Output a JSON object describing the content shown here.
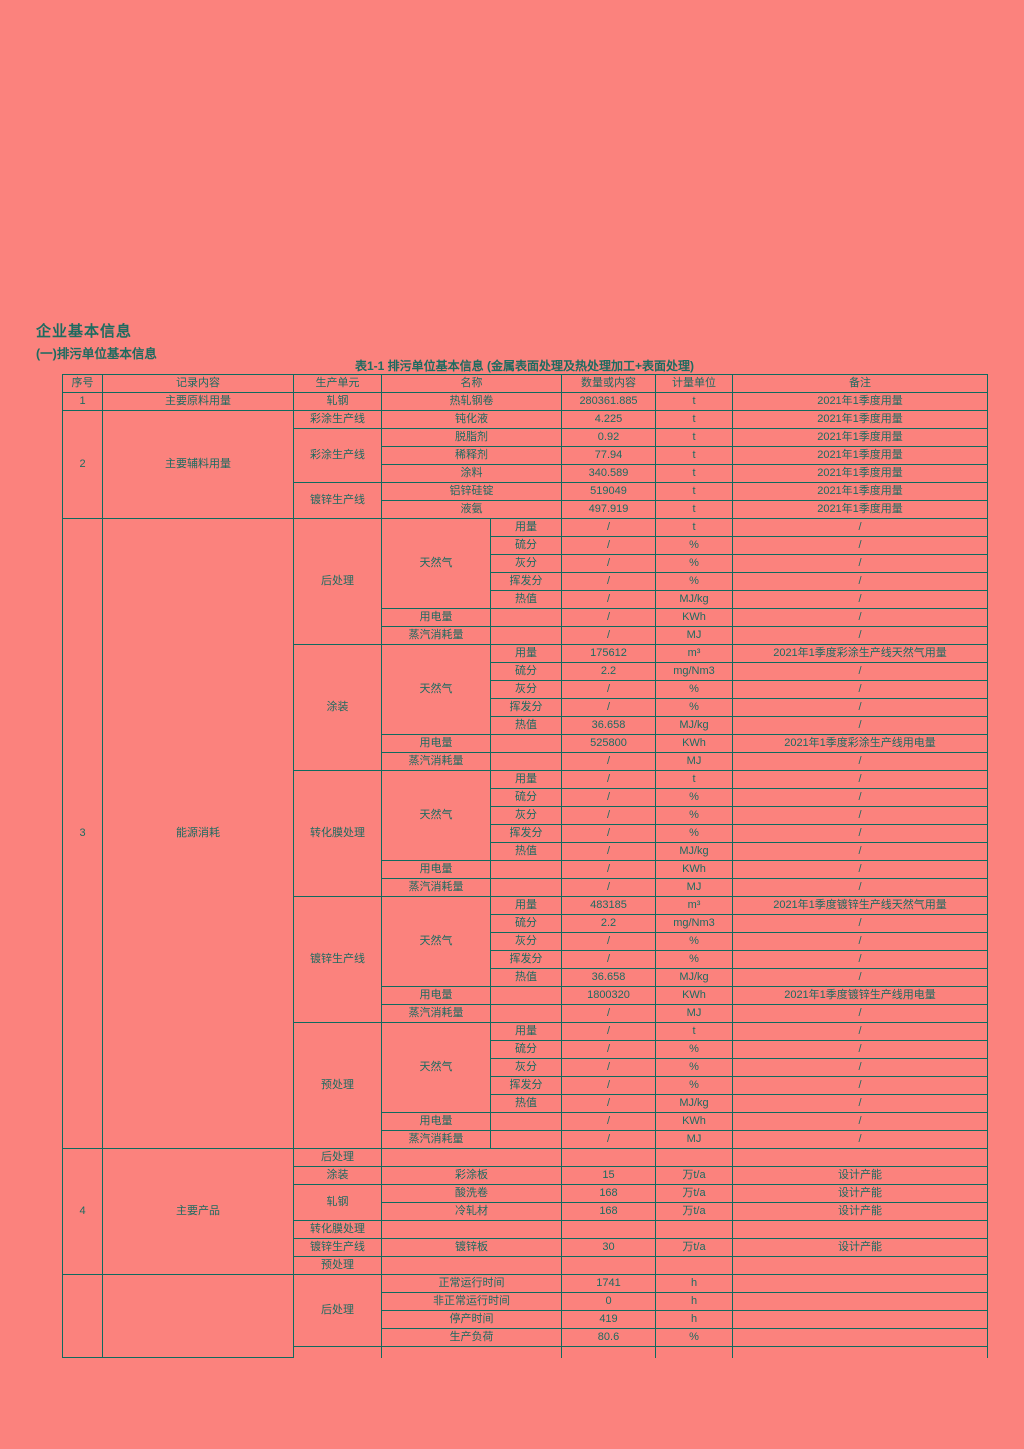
{
  "page": {
    "title": "企业基本信息",
    "subtitle": "(一)排污单位基本信息",
    "table_caption": "表1-1 排污单位基本信息 (金属表面处理及热处理加工+表面处理)"
  },
  "colors": {
    "page_background": "#fb827d",
    "ink": "#1d6b60",
    "table_border": "#0f6a5e"
  },
  "table": {
    "headers": [
      "序号",
      "记录内容",
      "生产单元",
      "名称",
      "数量或内容",
      "计量单位",
      "备注"
    ],
    "rows": [
      {
        "cells": [
          {
            "t": "1"
          },
          {
            "t": "主要原料用量"
          },
          {
            "t": "轧钢"
          },
          {
            "t": "热轧钢卷",
            "cs": 2
          },
          {
            "t": "280361.885"
          },
          {
            "t": "t"
          },
          {
            "t": "2021年1季度用量"
          }
        ]
      },
      {
        "cells": [
          {
            "t": "2",
            "rs": 6
          },
          {
            "t": "主要辅料用量",
            "rs": 6
          },
          {
            "t": "彩涂生产线"
          },
          {
            "t": "钝化液",
            "cs": 2
          },
          {
            "t": "4.225"
          },
          {
            "t": "t"
          },
          {
            "t": "2021年1季度用量"
          }
        ]
      },
      {
        "cells": [
          {
            "t": "彩涂生产线",
            "rs": 3
          },
          {
            "t": "脱脂剂",
            "cs": 2
          },
          {
            "t": "0.92"
          },
          {
            "t": "t"
          },
          {
            "t": "2021年1季度用量"
          }
        ]
      },
      {
        "cells": [
          {
            "t": "稀释剂",
            "cs": 2
          },
          {
            "t": "77.94"
          },
          {
            "t": "t"
          },
          {
            "t": "2021年1季度用量"
          }
        ]
      },
      {
        "cells": [
          {
            "t": "涂料",
            "cs": 2
          },
          {
            "t": "340.589"
          },
          {
            "t": "t"
          },
          {
            "t": "2021年1季度用量"
          }
        ]
      },
      {
        "cells": [
          {
            "t": "镀锌生产线",
            "rs": 2
          },
          {
            "t": "铝锌硅锭",
            "cs": 2
          },
          {
            "t": "519049"
          },
          {
            "t": "t"
          },
          {
            "t": "2021年1季度用量"
          }
        ]
      },
      {
        "cells": [
          {
            "t": "液氨",
            "cs": 2
          },
          {
            "t": "497.919"
          },
          {
            "t": "t"
          },
          {
            "t": "2021年1季度用量"
          }
        ]
      },
      {
        "cells": [
          {
            "t": "3",
            "rs": 35
          },
          {
            "t": "能源消耗",
            "rs": 35
          },
          {
            "t": "后处理",
            "rs": 7
          },
          {
            "t": "天然气",
            "rs": 5
          },
          {
            "t": "用量"
          },
          {
            "t": "/"
          },
          {
            "t": "t"
          },
          {
            "t": "/"
          }
        ]
      },
      {
        "cells": [
          {
            "t": "硫分"
          },
          {
            "t": "/"
          },
          {
            "t": "%"
          },
          {
            "t": "/"
          }
        ]
      },
      {
        "cells": [
          {
            "t": "灰分"
          },
          {
            "t": "/"
          },
          {
            "t": "%"
          },
          {
            "t": "/"
          }
        ]
      },
      {
        "cells": [
          {
            "t": "挥发分"
          },
          {
            "t": "/"
          },
          {
            "t": "%"
          },
          {
            "t": "/"
          }
        ]
      },
      {
        "cells": [
          {
            "t": "热值"
          },
          {
            "t": "/"
          },
          {
            "t": "MJ/kg"
          },
          {
            "t": "/"
          }
        ]
      },
      {
        "cells": [
          {
            "t": "用电量"
          },
          {
            "t": ""
          },
          {
            "t": "/"
          },
          {
            "t": "KWh"
          },
          {
            "t": "/"
          }
        ]
      },
      {
        "cells": [
          {
            "t": "蒸汽消耗量"
          },
          {
            "t": ""
          },
          {
            "t": "/"
          },
          {
            "t": "MJ"
          },
          {
            "t": "/"
          }
        ]
      },
      {
        "cells": [
          {
            "t": "涂装",
            "rs": 7
          },
          {
            "t": "天然气",
            "rs": 5
          },
          {
            "t": "用量"
          },
          {
            "t": "175612"
          },
          {
            "t": "m³"
          },
          {
            "t": "2021年1季度彩涂生产线天然气用量"
          }
        ]
      },
      {
        "cells": [
          {
            "t": "硫分"
          },
          {
            "t": "2.2"
          },
          {
            "t": "mg/Nm3"
          },
          {
            "t": "/"
          }
        ]
      },
      {
        "cells": [
          {
            "t": "灰分"
          },
          {
            "t": "/"
          },
          {
            "t": "%"
          },
          {
            "t": "/"
          }
        ]
      },
      {
        "cells": [
          {
            "t": "挥发分"
          },
          {
            "t": "/"
          },
          {
            "t": "%"
          },
          {
            "t": "/"
          }
        ]
      },
      {
        "cells": [
          {
            "t": "热值"
          },
          {
            "t": "36.658"
          },
          {
            "t": "MJ/kg"
          },
          {
            "t": "/"
          }
        ]
      },
      {
        "cells": [
          {
            "t": "用电量"
          },
          {
            "t": ""
          },
          {
            "t": "525800"
          },
          {
            "t": "KWh"
          },
          {
            "t": "2021年1季度彩涂生产线用电量"
          }
        ]
      },
      {
        "cells": [
          {
            "t": "蒸汽消耗量"
          },
          {
            "t": ""
          },
          {
            "t": "/"
          },
          {
            "t": "MJ"
          },
          {
            "t": "/"
          }
        ]
      },
      {
        "cells": [
          {
            "t": "转化膜处理",
            "rs": 7
          },
          {
            "t": "天然气",
            "rs": 5
          },
          {
            "t": "用量"
          },
          {
            "t": "/"
          },
          {
            "t": "t"
          },
          {
            "t": "/"
          }
        ]
      },
      {
        "cells": [
          {
            "t": "硫分"
          },
          {
            "t": "/"
          },
          {
            "t": "%"
          },
          {
            "t": "/"
          }
        ]
      },
      {
        "cells": [
          {
            "t": "灰分"
          },
          {
            "t": "/"
          },
          {
            "t": "%"
          },
          {
            "t": "/"
          }
        ]
      },
      {
        "cells": [
          {
            "t": "挥发分"
          },
          {
            "t": "/"
          },
          {
            "t": "%"
          },
          {
            "t": "/"
          }
        ]
      },
      {
        "cells": [
          {
            "t": "热值"
          },
          {
            "t": "/"
          },
          {
            "t": "MJ/kg"
          },
          {
            "t": "/"
          }
        ]
      },
      {
        "cells": [
          {
            "t": "用电量"
          },
          {
            "t": ""
          },
          {
            "t": "/"
          },
          {
            "t": "KWh"
          },
          {
            "t": "/"
          }
        ]
      },
      {
        "cells": [
          {
            "t": "蒸汽消耗量"
          },
          {
            "t": ""
          },
          {
            "t": "/"
          },
          {
            "t": "MJ"
          },
          {
            "t": "/"
          }
        ]
      },
      {
        "cells": [
          {
            "t": "镀锌生产线",
            "rs": 7
          },
          {
            "t": "天然气",
            "rs": 5
          },
          {
            "t": "用量"
          },
          {
            "t": "483185"
          },
          {
            "t": "m³"
          },
          {
            "t": "2021年1季度镀锌生产线天然气用量"
          }
        ]
      },
      {
        "cells": [
          {
            "t": "硫分"
          },
          {
            "t": "2.2"
          },
          {
            "t": "mg/Nm3"
          },
          {
            "t": "/"
          }
        ]
      },
      {
        "cells": [
          {
            "t": "灰分"
          },
          {
            "t": "/"
          },
          {
            "t": "%"
          },
          {
            "t": "/"
          }
        ]
      },
      {
        "cells": [
          {
            "t": "挥发分"
          },
          {
            "t": "/"
          },
          {
            "t": "%"
          },
          {
            "t": "/"
          }
        ]
      },
      {
        "cells": [
          {
            "t": "热值"
          },
          {
            "t": "36.658"
          },
          {
            "t": "MJ/kg"
          },
          {
            "t": "/"
          }
        ]
      },
      {
        "cells": [
          {
            "t": "用电量"
          },
          {
            "t": ""
          },
          {
            "t": "1800320"
          },
          {
            "t": "KWh"
          },
          {
            "t": "2021年1季度镀锌生产线用电量"
          }
        ]
      },
      {
        "cells": [
          {
            "t": "蒸汽消耗量"
          },
          {
            "t": ""
          },
          {
            "t": "/"
          },
          {
            "t": "MJ"
          },
          {
            "t": "/"
          }
        ]
      },
      {
        "cells": [
          {
            "t": "预处理",
            "rs": 7
          },
          {
            "t": "天然气",
            "rs": 5
          },
          {
            "t": "用量"
          },
          {
            "t": "/"
          },
          {
            "t": "t"
          },
          {
            "t": "/"
          }
        ]
      },
      {
        "cells": [
          {
            "t": "硫分"
          },
          {
            "t": "/"
          },
          {
            "t": "%"
          },
          {
            "t": "/"
          }
        ]
      },
      {
        "cells": [
          {
            "t": "灰分"
          },
          {
            "t": "/"
          },
          {
            "t": "%"
          },
          {
            "t": "/"
          }
        ]
      },
      {
        "cells": [
          {
            "t": "挥发分"
          },
          {
            "t": "/"
          },
          {
            "t": "%"
          },
          {
            "t": "/"
          }
        ]
      },
      {
        "cells": [
          {
            "t": "热值"
          },
          {
            "t": "/"
          },
          {
            "t": "MJ/kg"
          },
          {
            "t": "/"
          }
        ]
      },
      {
        "cells": [
          {
            "t": "用电量"
          },
          {
            "t": ""
          },
          {
            "t": "/"
          },
          {
            "t": "KWh"
          },
          {
            "t": "/"
          }
        ]
      },
      {
        "cells": [
          {
            "t": "蒸汽消耗量"
          },
          {
            "t": ""
          },
          {
            "t": "/"
          },
          {
            "t": "MJ"
          },
          {
            "t": "/"
          }
        ]
      },
      {
        "cells": [
          {
            "t": "4",
            "rs": 7
          },
          {
            "t": "主要产品",
            "rs": 7
          },
          {
            "t": "后处理"
          },
          {
            "t": "",
            "cs": 2
          },
          {
            "t": ""
          },
          {
            "t": ""
          },
          {
            "t": ""
          }
        ]
      },
      {
        "cells": [
          {
            "t": "涂装"
          },
          {
            "t": "彩涂板",
            "cs": 2
          },
          {
            "t": "15"
          },
          {
            "t": "万t/a"
          },
          {
            "t": "设计产能"
          }
        ]
      },
      {
        "cells": [
          {
            "t": "轧钢",
            "rs": 2
          },
          {
            "t": "酸洗卷",
            "cs": 2
          },
          {
            "t": "168"
          },
          {
            "t": "万t/a"
          },
          {
            "t": "设计产能"
          }
        ]
      },
      {
        "cells": [
          {
            "t": "冷轧材",
            "cs": 2
          },
          {
            "t": "168"
          },
          {
            "t": "万t/a"
          },
          {
            "t": "设计产能"
          }
        ]
      },
      {
        "cells": [
          {
            "t": "转化膜处理"
          },
          {
            "t": "",
            "cs": 2
          },
          {
            "t": ""
          },
          {
            "t": ""
          },
          {
            "t": ""
          }
        ]
      },
      {
        "cells": [
          {
            "t": "镀锌生产线"
          },
          {
            "t": "镀锌板",
            "cs": 2
          },
          {
            "t": "30"
          },
          {
            "t": "万t/a"
          },
          {
            "t": "设计产能"
          }
        ]
      },
      {
        "cells": [
          {
            "t": "预处理"
          },
          {
            "t": "",
            "cs": 2
          },
          {
            "t": ""
          },
          {
            "t": ""
          },
          {
            "t": ""
          }
        ]
      },
      {
        "cells": [
          {
            "t": "",
            "rs": 5,
            "nb": true
          },
          {
            "t": "",
            "rs": 5,
            "nb": true
          },
          {
            "t": "后处理",
            "rs": 4
          },
          {
            "t": "正常运行时间",
            "cs": 2
          },
          {
            "t": "1741"
          },
          {
            "t": "h"
          },
          {
            "t": ""
          }
        ]
      },
      {
        "cells": [
          {
            "t": "非正常运行时间",
            "cs": 2
          },
          {
            "t": "0"
          },
          {
            "t": "h"
          },
          {
            "t": ""
          }
        ]
      },
      {
        "cells": [
          {
            "t": "停产时间",
            "cs": 2
          },
          {
            "t": "419"
          },
          {
            "t": "h"
          },
          {
            "t": ""
          }
        ]
      },
      {
        "cells": [
          {
            "t": "生产负荷",
            "cs": 2
          },
          {
            "t": "80.6"
          },
          {
            "t": "%"
          },
          {
            "t": ""
          }
        ]
      },
      {
        "partial": true,
        "cells": [
          {
            "t": "",
            "nb": true
          },
          {
            "t": "",
            "cs": 2,
            "nb": true
          },
          {
            "t": "",
            "nb": true
          },
          {
            "t": "",
            "nb": true
          },
          {
            "t": "",
            "nb": true
          }
        ]
      }
    ]
  }
}
